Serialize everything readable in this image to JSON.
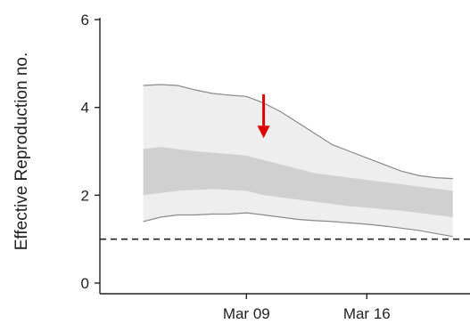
{
  "chart_data": {
    "type": "area",
    "title": "",
    "xlabel": "",
    "ylabel": "Effective Reproduction no.",
    "ylim": [
      0,
      6
    ],
    "xlim": [
      "2020-03-01",
      "2020-03-22"
    ],
    "x_ticks": [
      {
        "date": "2020-03-09",
        "label": "Mar 09"
      },
      {
        "date": "2020-03-16",
        "label": "Mar 16"
      }
    ],
    "y_ticks": [
      0,
      2,
      4,
      6
    ],
    "x": [
      "2020-03-03",
      "2020-03-04",
      "2020-03-05",
      "2020-03-06",
      "2020-03-07",
      "2020-03-08",
      "2020-03-09",
      "2020-03-10",
      "2020-03-11",
      "2020-03-12",
      "2020-03-13",
      "2020-03-14",
      "2020-03-15",
      "2020-03-16",
      "2020-03-17",
      "2020-03-18",
      "2020-03-19",
      "2020-03-20",
      "2020-03-21"
    ],
    "series": [
      {
        "role": "outer-interval",
        "color": "#eeeeee",
        "lower": [
          1.4,
          1.5,
          1.55,
          1.55,
          1.57,
          1.57,
          1.6,
          1.55,
          1.5,
          1.45,
          1.42,
          1.4,
          1.37,
          1.34,
          1.3,
          1.25,
          1.2,
          1.13,
          1.06
        ],
        "upper": [
          4.5,
          4.52,
          4.5,
          4.4,
          4.32,
          4.28,
          4.25,
          4.1,
          3.9,
          3.65,
          3.4,
          3.15,
          3.0,
          2.85,
          2.7,
          2.55,
          2.45,
          2.4,
          2.38
        ]
      },
      {
        "role": "inner-interval",
        "color": "#d0d0d0",
        "lower": [
          2.0,
          2.05,
          2.1,
          2.12,
          2.14,
          2.12,
          2.1,
          2.0,
          1.95,
          1.9,
          1.85,
          1.8,
          1.75,
          1.72,
          1.68,
          1.65,
          1.6,
          1.55,
          1.5
        ],
        "upper": [
          3.05,
          3.1,
          3.05,
          3.0,
          2.97,
          2.94,
          2.9,
          2.8,
          2.7,
          2.6,
          2.5,
          2.45,
          2.4,
          2.35,
          2.3,
          2.25,
          2.2,
          2.15,
          2.1
        ]
      }
    ],
    "reference_line": {
      "y": 1,
      "style": "dashed",
      "color": "#222222"
    },
    "annotation": {
      "type": "arrow",
      "direction": "down",
      "color": "#e00000",
      "x": "2020-03-10",
      "y_start": 4.3,
      "y_end": 3.3
    }
  }
}
